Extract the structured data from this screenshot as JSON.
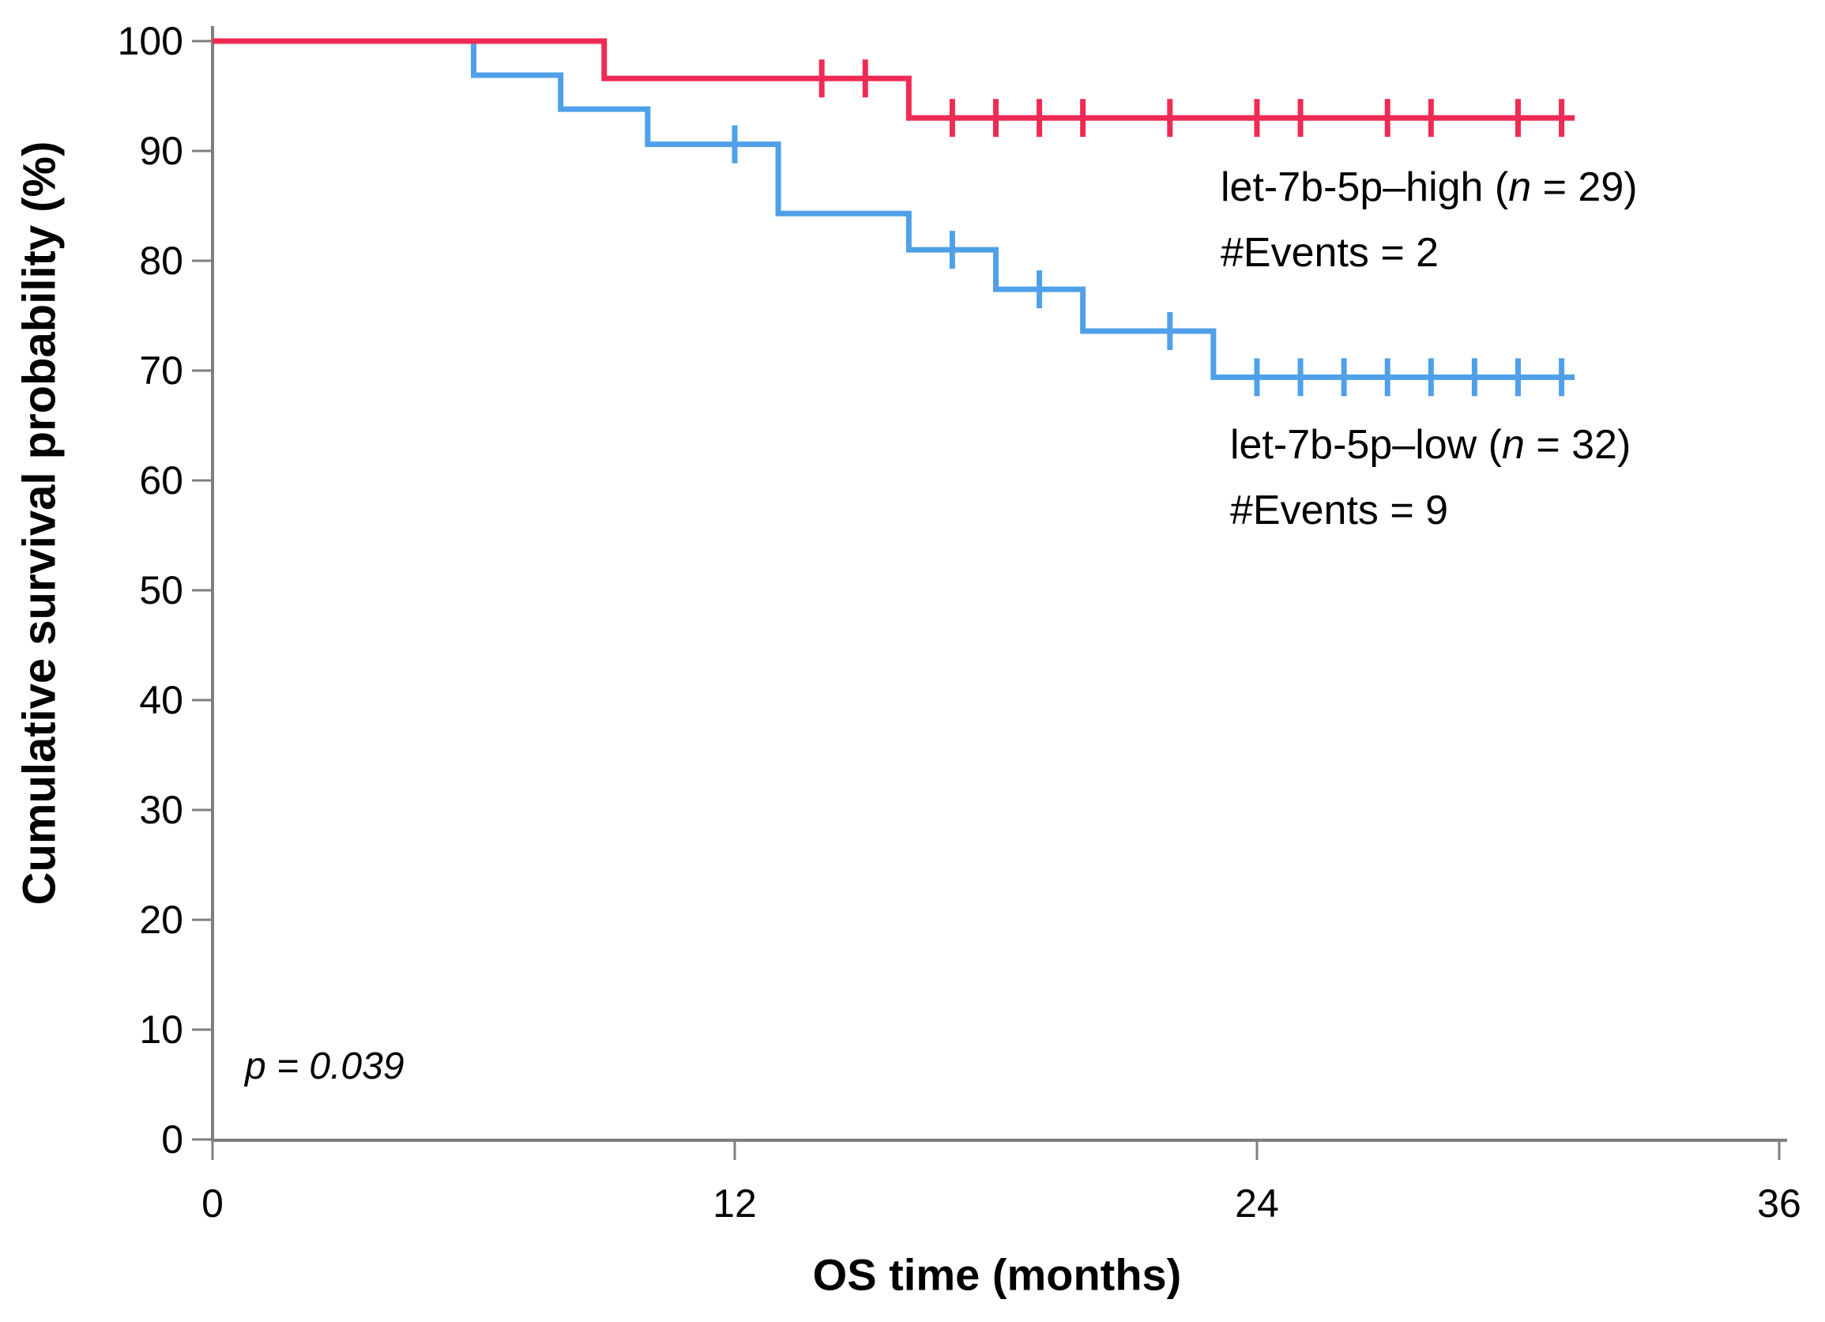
{
  "axis": {
    "x_label": "OS time (months)",
    "y_label": "Cumulative survival probability (%)"
  },
  "legend": {
    "high": {
      "prefix": "let-7b-5p–high (",
      "n_italic": "n",
      "suffix": " = 29)",
      "events_line": "#Events = 2"
    },
    "low": {
      "prefix": "let-7b-5p–low (",
      "n_italic": "n",
      "suffix": " = 32)",
      "events_line": "#Events = 9"
    }
  },
  "annotation": {
    "p_value": "p = 0.039"
  },
  "colors": {
    "high_series": "#EF2B55",
    "low_series": "#4FA0E8",
    "axis": "#7F7F7F",
    "text": "#000000"
  },
  "chart_data": {
    "type": "line",
    "subtype": "kaplan-meier-step",
    "title": "",
    "xlabel": "OS time (months)",
    "ylabel": "Cumulative survival probability (%)",
    "xlim": [
      0,
      36
    ],
    "ylim": [
      0,
      100
    ],
    "x_ticks": [
      0,
      12,
      24,
      36
    ],
    "y_ticks": [
      0,
      10,
      20,
      30,
      40,
      50,
      60,
      70,
      80,
      90,
      100
    ],
    "grid": false,
    "legend_position": "right-inside",
    "p_value": "p = 0.039",
    "series": [
      {
        "name": "let-7b-5p–high",
        "n": 29,
        "events": 2,
        "color": "#EF2B55",
        "steps": [
          [
            0,
            100
          ],
          [
            9,
            100
          ],
          [
            9,
            96.6
          ],
          [
            16,
            96.6
          ],
          [
            16,
            93.0
          ],
          [
            31.3,
            93.0
          ]
        ],
        "censors": [
          [
            14,
            96.6
          ],
          [
            15,
            96.6
          ],
          [
            17,
            93.0
          ],
          [
            18,
            93.0
          ],
          [
            19,
            93.0
          ],
          [
            20,
            93.0
          ],
          [
            22,
            93.0
          ],
          [
            24,
            93.0
          ],
          [
            25,
            93.0
          ],
          [
            27,
            93.0
          ],
          [
            28,
            93.0
          ],
          [
            30,
            93.0
          ],
          [
            31,
            93.0
          ]
        ]
      },
      {
        "name": "let-7b-5p–low",
        "n": 32,
        "events": 9,
        "color": "#4FA0E8",
        "steps": [
          [
            0,
            100
          ],
          [
            6,
            100
          ],
          [
            6,
            96.9
          ],
          [
            8,
            96.9
          ],
          [
            8,
            93.8
          ],
          [
            10,
            93.8
          ],
          [
            10,
            90.6
          ],
          [
            13,
            90.6
          ],
          [
            13,
            84.3
          ],
          [
            16,
            84.3
          ],
          [
            16,
            81.0
          ],
          [
            18,
            81.0
          ],
          [
            18,
            77.4
          ],
          [
            20,
            77.4
          ],
          [
            20,
            73.6
          ],
          [
            23,
            73.6
          ],
          [
            23,
            69.4
          ],
          [
            31.3,
            69.4
          ]
        ],
        "censors": [
          [
            12,
            90.6
          ],
          [
            17,
            81.0
          ],
          [
            19,
            77.4
          ],
          [
            22,
            73.6
          ],
          [
            24,
            69.4
          ],
          [
            25,
            69.4
          ],
          [
            26,
            69.4
          ],
          [
            27,
            69.4
          ],
          [
            28,
            69.4
          ],
          [
            29,
            69.4
          ],
          [
            30,
            69.4
          ],
          [
            31,
            69.4
          ]
        ]
      }
    ]
  }
}
